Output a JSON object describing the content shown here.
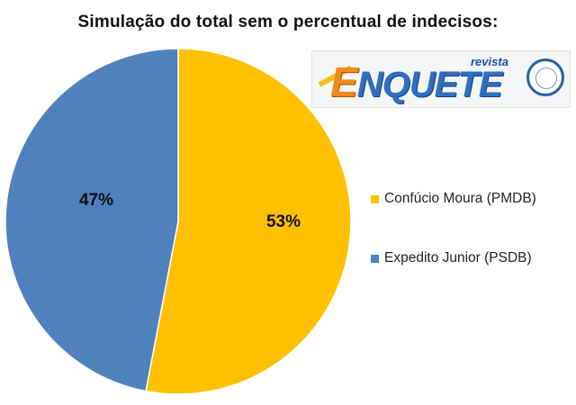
{
  "title": "Simulação do total sem o percentual de indecisos:",
  "logo": {
    "alt": "Revista Enquete logo",
    "small_text": "revista",
    "word_first": "E",
    "word_rest": "NQUETE"
  },
  "chart_data": {
    "type": "pie",
    "title": "Simulação do total sem o percentual de indecisos:",
    "slices": [
      {
        "label": "Confúcio Moura (PMDB)",
        "value": 53,
        "display": "53%",
        "color": "#FFC000"
      },
      {
        "label": "Expedito Junior (PSDB)",
        "value": 47,
        "display": "47%",
        "color": "#4F81BD"
      }
    ],
    "start_angle_deg": 0,
    "direction": "clockwise",
    "legend_position": "right"
  }
}
